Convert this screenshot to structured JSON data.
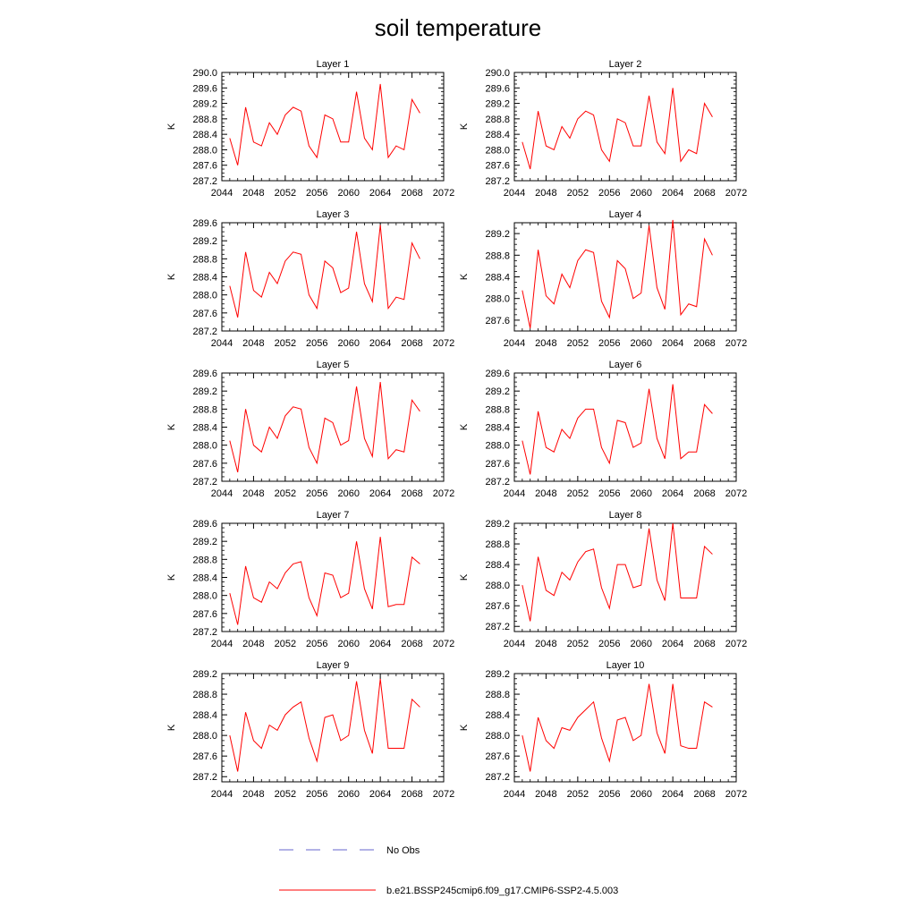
{
  "title": "soil temperature",
  "x_ticks": [
    2044,
    2048,
    2052,
    2056,
    2060,
    2064,
    2068,
    2072
  ],
  "x_years": [
    2045,
    2046,
    2047,
    2048,
    2049,
    2050,
    2051,
    2052,
    2053,
    2054,
    2055,
    2056,
    2057,
    2058,
    2059,
    2060,
    2061,
    2062,
    2063,
    2064,
    2065,
    2066,
    2067,
    2068,
    2069
  ],
  "ylabel": "K",
  "chart_data": [
    {
      "type": "line",
      "title": "Layer 1",
      "xlim": [
        2044,
        2072
      ],
      "ylim": [
        287.2,
        290.0
      ],
      "yticks": [
        "287.2",
        "287.6",
        "288.0",
        "288.4",
        "288.8",
        "289.2",
        "289.6",
        "290.0"
      ],
      "series": [
        {
          "name": "b.e21.BSSP245cmip6.f09_g17.CMIP6-SSP2-4.5.003",
          "color": "#ff0000",
          "values": [
            288.3,
            287.6,
            289.1,
            288.2,
            288.1,
            288.7,
            288.4,
            288.9,
            289.1,
            289.0,
            288.1,
            287.8,
            288.9,
            288.8,
            288.2,
            288.2,
            289.5,
            288.3,
            288.0,
            289.7,
            287.8,
            288.1,
            288.0,
            289.3,
            288.95
          ]
        }
      ]
    },
    {
      "type": "line",
      "title": "Layer 2",
      "xlim": [
        2044,
        2072
      ],
      "ylim": [
        287.2,
        290.0
      ],
      "yticks": [
        "287.2",
        "287.6",
        "288.0",
        "288.4",
        "288.8",
        "289.2",
        "289.6",
        "290.0"
      ],
      "series": [
        {
          "name": "b.e21.BSSP245cmip6.f09_g17.CMIP6-SSP2-4.5.003",
          "color": "#ff0000",
          "values": [
            288.2,
            287.5,
            289.0,
            288.1,
            288.0,
            288.6,
            288.3,
            288.8,
            289.0,
            288.9,
            288.0,
            287.7,
            288.8,
            288.7,
            288.1,
            288.1,
            289.4,
            288.2,
            287.9,
            289.6,
            287.7,
            288.0,
            287.9,
            289.2,
            288.85
          ]
        }
      ]
    },
    {
      "type": "line",
      "title": "Layer 3",
      "xlim": [
        2044,
        2072
      ],
      "ylim": [
        287.2,
        289.6
      ],
      "yticks": [
        "287.2",
        "287.6",
        "288.0",
        "288.4",
        "288.8",
        "289.2",
        "289.6"
      ],
      "series": [
        {
          "name": "b.e21.BSSP245cmip6.f09_g17.CMIP6-SSP2-4.5.003",
          "color": "#ff0000",
          "values": [
            288.2,
            287.5,
            288.95,
            288.1,
            287.95,
            288.5,
            288.25,
            288.75,
            288.95,
            288.9,
            288.0,
            287.7,
            288.75,
            288.6,
            288.05,
            288.15,
            289.4,
            288.25,
            287.85,
            289.55,
            287.7,
            287.95,
            287.9,
            289.15,
            288.8
          ]
        }
      ]
    },
    {
      "type": "line",
      "title": "Layer 4",
      "xlim": [
        2044,
        2072
      ],
      "ylim": [
        287.4,
        289.4
      ],
      "yticks": [
        "287.6",
        "288.0",
        "288.4",
        "288.8",
        "289.2"
      ],
      "series": [
        {
          "name": "b.e21.BSSP245cmip6.f09_g17.CMIP6-SSP2-4.5.003",
          "color": "#ff0000",
          "values": [
            288.15,
            287.45,
            288.9,
            288.05,
            287.9,
            288.45,
            288.2,
            288.7,
            288.9,
            288.85,
            287.95,
            287.65,
            288.7,
            288.55,
            288.0,
            288.1,
            289.35,
            288.2,
            287.8,
            289.45,
            287.7,
            287.9,
            287.85,
            289.1,
            288.8
          ]
        }
      ]
    },
    {
      "type": "line",
      "title": "Layer 5",
      "xlim": [
        2044,
        2072
      ],
      "ylim": [
        287.2,
        289.6
      ],
      "yticks": [
        "287.2",
        "287.6",
        "288.0",
        "288.4",
        "288.8",
        "289.2",
        "289.6"
      ],
      "series": [
        {
          "name": "b.e21.BSSP245cmip6.f09_g17.CMIP6-SSP2-4.5.003",
          "color": "#ff0000",
          "values": [
            288.1,
            287.4,
            288.8,
            288.0,
            287.85,
            288.4,
            288.15,
            288.65,
            288.85,
            288.8,
            287.95,
            287.6,
            288.6,
            288.5,
            288.0,
            288.1,
            289.3,
            288.15,
            287.75,
            289.4,
            287.7,
            287.9,
            287.85,
            289.0,
            288.75
          ]
        }
      ]
    },
    {
      "type": "line",
      "title": "Layer 6",
      "xlim": [
        2044,
        2072
      ],
      "ylim": [
        287.2,
        289.6
      ],
      "yticks": [
        "287.2",
        "287.6",
        "288.0",
        "288.4",
        "288.8",
        "289.2",
        "289.6"
      ],
      "series": [
        {
          "name": "b.e21.BSSP245cmip6.f09_g17.CMIP6-SSP2-4.5.003",
          "color": "#ff0000",
          "values": [
            288.1,
            287.35,
            288.75,
            287.95,
            287.85,
            288.35,
            288.15,
            288.6,
            288.8,
            288.8,
            287.95,
            287.6,
            288.55,
            288.5,
            287.95,
            288.05,
            289.25,
            288.15,
            287.7,
            289.35,
            287.7,
            287.85,
            287.85,
            288.9,
            288.7
          ]
        }
      ]
    },
    {
      "type": "line",
      "title": "Layer 7",
      "xlim": [
        2044,
        2072
      ],
      "ylim": [
        287.2,
        289.6
      ],
      "yticks": [
        "287.2",
        "287.6",
        "288.0",
        "288.4",
        "288.8",
        "289.2",
        "289.6"
      ],
      "series": [
        {
          "name": "b.e21.BSSP245cmip6.f09_g17.CMIP6-SSP2-4.5.003",
          "color": "#ff0000",
          "values": [
            288.05,
            287.35,
            288.65,
            287.95,
            287.85,
            288.3,
            288.15,
            288.5,
            288.7,
            288.75,
            287.95,
            287.55,
            288.5,
            288.45,
            287.95,
            288.05,
            289.2,
            288.15,
            287.7,
            289.3,
            287.75,
            287.8,
            287.8,
            288.85,
            288.7
          ]
        }
      ]
    },
    {
      "type": "line",
      "title": "Layer 8",
      "xlim": [
        2044,
        2072
      ],
      "ylim": [
        287.1,
        289.2
      ],
      "yticks": [
        "287.2",
        "287.6",
        "288.0",
        "288.4",
        "288.8",
        "289.2"
      ],
      "series": [
        {
          "name": "b.e21.BSSP245cmip6.f09_g17.CMIP6-SSP2-4.5.003",
          "color": "#ff0000",
          "values": [
            288.0,
            287.3,
            288.55,
            287.9,
            287.8,
            288.25,
            288.1,
            288.45,
            288.65,
            288.7,
            287.95,
            287.55,
            288.4,
            288.4,
            287.95,
            288.0,
            289.1,
            288.1,
            287.7,
            289.2,
            287.75,
            287.75,
            287.75,
            288.75,
            288.6
          ]
        }
      ]
    },
    {
      "type": "line",
      "title": "Layer 9",
      "xlim": [
        2044,
        2072
      ],
      "ylim": [
        287.1,
        289.2
      ],
      "yticks": [
        "287.2",
        "287.6",
        "288.0",
        "288.4",
        "288.8",
        "289.2"
      ],
      "series": [
        {
          "name": "b.e21.BSSP245cmip6.f09_g17.CMIP6-SSP2-4.5.003",
          "color": "#ff0000",
          "values": [
            288.0,
            287.3,
            288.45,
            287.9,
            287.75,
            288.2,
            288.1,
            288.4,
            288.55,
            288.65,
            287.95,
            287.5,
            288.35,
            288.4,
            287.9,
            288.0,
            289.05,
            288.1,
            287.65,
            289.1,
            287.75,
            287.75,
            287.75,
            288.7,
            288.55
          ]
        }
      ]
    },
    {
      "type": "line",
      "title": "Layer 10",
      "xlim": [
        2044,
        2072
      ],
      "ylim": [
        287.1,
        289.2
      ],
      "yticks": [
        "287.2",
        "287.6",
        "288.0",
        "288.4",
        "288.8",
        "289.2"
      ],
      "series": [
        {
          "name": "b.e21.BSSP245cmip6.f09_g17.CMIP6-SSP2-4.5.003",
          "color": "#ff0000",
          "values": [
            288.0,
            287.3,
            288.35,
            287.9,
            287.75,
            288.15,
            288.1,
            288.35,
            288.5,
            288.65,
            287.95,
            287.5,
            288.3,
            288.35,
            287.9,
            288.0,
            289.0,
            288.05,
            287.65,
            289.0,
            287.8,
            287.75,
            287.75,
            288.65,
            288.55
          ]
        }
      ]
    }
  ],
  "legend": [
    {
      "label": "No Obs",
      "color": "#6666cc",
      "dash": "dashed"
    },
    {
      "label": "b.e21.BSSP245cmip6.f09_g17.CMIP6-SSP2-4.5.003",
      "color": "#ff0000",
      "dash": "solid"
    }
  ]
}
